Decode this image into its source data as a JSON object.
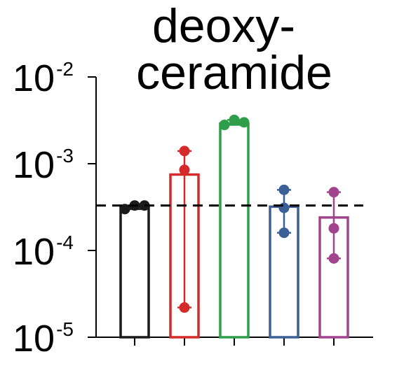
{
  "chart_data": {
    "type": "bar",
    "title_lines": [
      "deoxy-",
      "ceramide"
    ],
    "y_scale": "log",
    "ylim": [
      1e-05,
      0.01
    ],
    "y_ticks": [
      {
        "value": 0.01,
        "base": "10",
        "exp": "-2"
      },
      {
        "value": 0.001,
        "base": "10",
        "exp": "-3"
      },
      {
        "value": 0.0001,
        "base": "10",
        "exp": "-4"
      },
      {
        "value": 1e-05,
        "base": "10",
        "exp": "-5"
      }
    ],
    "reference_line": 0.00033,
    "categories": [
      "",
      "",
      "",
      "",
      ""
    ],
    "series": [
      {
        "color": "#1a1a1a",
        "mean": 0.00032,
        "points": [
          0.0003,
          0.00033,
          0.00033
        ]
      },
      {
        "color": "#d42a2a",
        "mean": 0.00075,
        "points": [
          0.0014,
          0.00085,
          2.2e-05
        ]
      },
      {
        "color": "#2e9e4a",
        "mean": 0.0029,
        "points": [
          0.0028,
          0.0032,
          0.003
        ]
      },
      {
        "color": "#3b5f96",
        "mean": 0.00032,
        "points": [
          0.0005,
          0.00031,
          0.00016
        ]
      },
      {
        "color": "#a2438d",
        "mean": 0.00024,
        "points": [
          0.00047,
          0.00018,
          8.1e-05
        ]
      }
    ]
  }
}
